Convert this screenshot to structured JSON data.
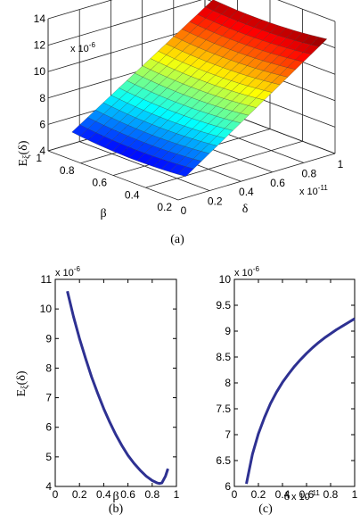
{
  "chart_data": [
    {
      "panel": "a",
      "type": "surface",
      "caption": "(a)",
      "xlabel": "δ",
      "ylabel": "β",
      "zlabel": "Eξ(δ)",
      "zlabel_main": "E",
      "zlabel_sub": "ξ",
      "zlabel_tail": "(δ)",
      "x_exponent": "x 10",
      "x_exponent_power": "-11",
      "z_exponent": "x 10",
      "z_exponent_power": "-6",
      "xlim": [
        0,
        1
      ],
      "ylim": [
        0.2,
        1
      ],
      "zlim": [
        4,
        14
      ],
      "x_ticks": [
        "0",
        "0.2",
        "0.4",
        "0.6",
        "0.8",
        "1"
      ],
      "y_ticks": [
        "0.2",
        "0.4",
        "0.6",
        "0.8",
        "1"
      ],
      "z_ticks": [
        "4",
        "6",
        "8",
        "10",
        "12",
        "14"
      ],
      "grid": true,
      "colormap": "jet"
    },
    {
      "panel": "b",
      "type": "line",
      "caption": "(b)",
      "xlabel": "β",
      "ylabel": "Eξ(δ)",
      "ylabel_main": "E",
      "ylabel_sub": "ξ",
      "ylabel_tail": "(δ)",
      "y_exponent": "x 10",
      "y_exponent_power": "-6",
      "xlim": [
        0,
        1
      ],
      "ylim": [
        4,
        11
      ],
      "x_ticks": [
        "0",
        "0.2",
        "0.4",
        "0.6",
        "0.8",
        "1"
      ],
      "y_ticks": [
        "4",
        "5",
        "6",
        "7",
        "8",
        "9",
        "10",
        "11"
      ],
      "color": "#2e3192",
      "x": [
        0.1,
        0.15,
        0.2,
        0.25,
        0.3,
        0.35,
        0.4,
        0.45,
        0.5,
        0.55,
        0.6,
        0.65,
        0.7,
        0.75,
        0.8,
        0.84,
        0.86,
        0.88,
        0.91,
        0.93
      ],
      "y": [
        10.6,
        9.75,
        9.0,
        8.33,
        7.7,
        7.15,
        6.63,
        6.17,
        5.75,
        5.38,
        5.05,
        4.78,
        4.55,
        4.35,
        4.2,
        4.12,
        4.1,
        4.12,
        4.35,
        4.6
      ]
    },
    {
      "panel": "c",
      "type": "line",
      "caption": "(c)",
      "xlabel": "δ",
      "x_exponent": "x 10",
      "x_exponent_power": "-11",
      "y_exponent": "x 10",
      "y_exponent_power": "-6",
      "xlim": [
        0,
        1
      ],
      "ylim": [
        6,
        10
      ],
      "x_ticks": [
        "0",
        "0.2",
        "0.4",
        "0.6",
        "0.8",
        "1"
      ],
      "y_ticks": [
        "6",
        "6.5",
        "7",
        "7.5",
        "8",
        "8.5",
        "9",
        "9.5",
        "10"
      ],
      "color": "#2e3192",
      "x": [
        0.1,
        0.15,
        0.2,
        0.25,
        0.3,
        0.35,
        0.4,
        0.45,
        0.5,
        0.55,
        0.6,
        0.65,
        0.7,
        0.75,
        0.8,
        0.85,
        0.9,
        0.95,
        1.0
      ],
      "y": [
        6.05,
        6.62,
        7.02,
        7.33,
        7.6,
        7.82,
        8.01,
        8.17,
        8.32,
        8.45,
        8.57,
        8.68,
        8.78,
        8.87,
        8.95,
        9.03,
        9.1,
        9.17,
        9.24
      ]
    }
  ]
}
